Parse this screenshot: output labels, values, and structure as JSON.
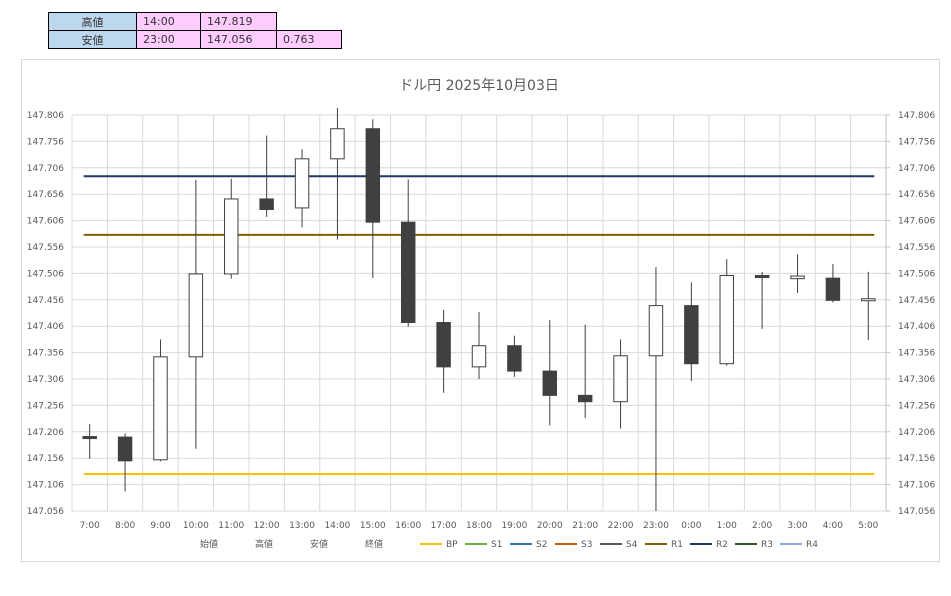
{
  "summary": {
    "high": {
      "label": "高値",
      "time": "14:00",
      "price": "147.819"
    },
    "low": {
      "label": "安値",
      "time": "23:00",
      "price": "147.056",
      "range": "0.763"
    }
  },
  "chart_data": {
    "type": "candlestick",
    "title": "ドル円  2025年10月03日",
    "ylim": [
      147.056,
      147.806
    ],
    "y_ticks": [
      "147.806",
      "147.756",
      "147.706",
      "147.656",
      "147.606",
      "147.556",
      "147.506",
      "147.456",
      "147.406",
      "147.356",
      "147.306",
      "147.256",
      "147.206",
      "147.156",
      "147.106",
      "147.056"
    ],
    "categories": [
      "7:00",
      "8:00",
      "9:00",
      "10:00",
      "11:00",
      "12:00",
      "13:00",
      "14:00",
      "15:00",
      "16:00",
      "17:00",
      "18:00",
      "19:00",
      "20:00",
      "21:00",
      "22:00",
      "23:00",
      "0:00",
      "1:00",
      "2:00",
      "3:00",
      "4:00",
      "5:00"
    ],
    "open": [
      147.197,
      147.196,
      147.153,
      147.348,
      147.505,
      147.647,
      147.63,
      147.723,
      147.78,
      147.603,
      147.413,
      147.329,
      147.369,
      147.321,
      147.275,
      147.263,
      147.35,
      147.445,
      147.335,
      147.502,
      147.496,
      147.497,
      147.457
    ],
    "high": [
      147.221,
      147.203,
      147.381,
      147.683,
      147.685,
      147.767,
      147.741,
      147.819,
      147.798,
      147.684,
      147.437,
      147.433,
      147.388,
      147.418,
      147.409,
      147.381,
      147.518,
      147.489,
      147.533,
      147.509,
      147.542,
      147.524,
      147.509
    ],
    "low": [
      147.155,
      147.093,
      147.15,
      147.174,
      147.496,
      147.613,
      147.593,
      147.57,
      147.497,
      147.405,
      147.28,
      147.306,
      147.31,
      147.218,
      147.232,
      147.212,
      147.056,
      147.302,
      147.331,
      147.401,
      147.469,
      147.451,
      147.38
    ],
    "close": [
      147.194,
      147.151,
      147.348,
      147.505,
      147.647,
      147.627,
      147.723,
      147.78,
      147.603,
      147.413,
      147.329,
      147.369,
      147.321,
      147.275,
      147.263,
      147.35,
      147.445,
      147.335,
      147.502,
      147.501,
      147.501,
      147.455,
      147.458
    ],
    "levels": [
      {
        "name": "BP",
        "value": 147.126,
        "color": "#ffc000"
      },
      {
        "name": "R1",
        "value": 147.579,
        "color": "#7f6000"
      },
      {
        "name": "R2",
        "value": 147.69,
        "color": "#1f3864"
      }
    ],
    "legend": [
      {
        "name": "始値",
        "color": null
      },
      {
        "name": "高値",
        "color": null
      },
      {
        "name": "安値",
        "color": null
      },
      {
        "name": "終値",
        "color": null
      },
      {
        "name": "BP",
        "color": "#ffc000"
      },
      {
        "name": "S1",
        "color": "#70ad47"
      },
      {
        "name": "S2",
        "color": "#2e75b6"
      },
      {
        "name": "S3",
        "color": "#c55a11"
      },
      {
        "name": "S4",
        "color": "#595959"
      },
      {
        "name": "R1",
        "color": "#7f6000"
      },
      {
        "name": "R2",
        "color": "#1f3864"
      },
      {
        "name": "R3",
        "color": "#375623"
      },
      {
        "name": "R4",
        "color": "#8faadc"
      }
    ],
    "colors": {
      "up": "#ffffff",
      "down": "#404040",
      "grid": "#d9d9d9"
    }
  }
}
